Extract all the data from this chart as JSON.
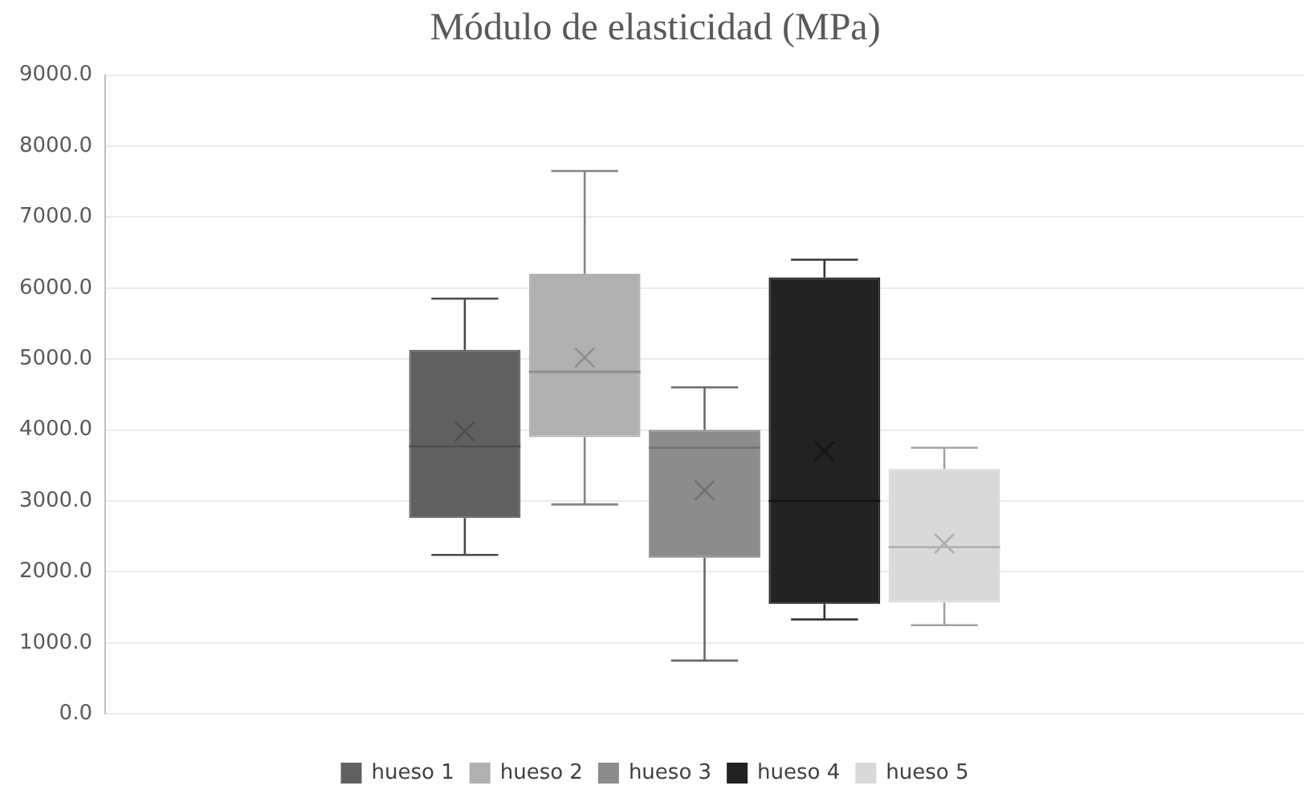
{
  "chart_data": {
    "type": "box",
    "title": "Módulo de elasticidad (MPa)",
    "categories": [
      null
    ],
    "series": [
      {
        "name": "hueso 1",
        "color": "#606060",
        "boxes": [
          {
            "low": 2240,
            "q1": 2760,
            "median": 3770,
            "q3": 5130,
            "high": 5850,
            "mean": 3980
          }
        ]
      },
      {
        "name": "hueso 2",
        "color": "#b0b0b0",
        "boxes": [
          {
            "low": 2950,
            "q1": 3900,
            "median": 4820,
            "q3": 6200,
            "high": 7650,
            "mean": 5020
          }
        ]
      },
      {
        "name": "hueso 3",
        "color": "#8c8c8c",
        "boxes": [
          {
            "low": 750,
            "q1": 2200,
            "median": 3750,
            "q3": 4000,
            "high": 4600,
            "mean": 3150
          }
        ]
      },
      {
        "name": "hueso 4",
        "color": "#222222",
        "boxes": [
          {
            "low": 1330,
            "q1": 1550,
            "median": 3000,
            "q3": 6150,
            "high": 6400,
            "mean": 3700
          }
        ]
      },
      {
        "name": "hueso 5",
        "color": "#d9d9d9",
        "boxes": [
          {
            "low": 1250,
            "q1": 1570,
            "median": 2350,
            "q3": 3450,
            "high": 3750,
            "mean": 2400
          }
        ]
      }
    ],
    "ylim": [
      0,
      9000
    ],
    "yticks": [
      {
        "value": 0,
        "label": "0.0"
      },
      {
        "value": 1000,
        "label": "1000.0"
      },
      {
        "value": 2000,
        "label": "2000.0"
      },
      {
        "value": 3000,
        "label": "3000.0"
      },
      {
        "value": 4000,
        "label": "4000.0"
      },
      {
        "value": 5000,
        "label": "5000.0"
      },
      {
        "value": 6000,
        "label": "6000.0"
      },
      {
        "value": 7000,
        "label": "7000.0"
      },
      {
        "value": 8000,
        "label": "8000.0"
      },
      {
        "value": 9000,
        "label": "9000.0"
      }
    ],
    "grid": "y",
    "legend": "bottom"
  }
}
